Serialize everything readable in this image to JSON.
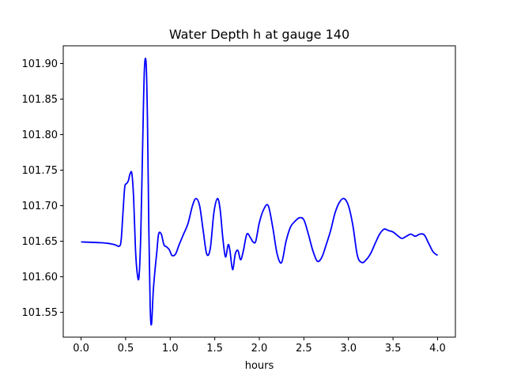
{
  "chart_data": {
    "type": "line",
    "title": "Water Depth h at gauge 140",
    "xlabel": "hours",
    "ylabel": "",
    "xlim": [
      -0.2,
      4.2
    ],
    "ylim": [
      101.515,
      101.925
    ],
    "xticks": [
      0.0,
      0.5,
      1.0,
      1.5,
      2.0,
      2.5,
      3.0,
      3.5,
      4.0
    ],
    "xtick_labels": [
      "0.0",
      "0.5",
      "1.0",
      "1.5",
      "2.0",
      "2.5",
      "3.0",
      "3.5",
      "4.0"
    ],
    "yticks": [
      101.55,
      101.6,
      101.65,
      101.7,
      101.75,
      101.8,
      101.85,
      101.9
    ],
    "ytick_labels": [
      "101.55",
      "101.60",
      "101.65",
      "101.70",
      "101.75",
      "101.80",
      "101.85",
      "101.90"
    ],
    "grid": false,
    "series": [
      {
        "color": "#0000ff",
        "x": [
          0.0,
          0.2,
          0.3,
          0.38,
          0.43,
          0.45,
          0.47,
          0.49,
          0.51,
          0.53,
          0.55,
          0.57,
          0.59,
          0.61,
          0.63,
          0.65,
          0.67,
          0.69,
          0.71,
          0.73,
          0.745,
          0.76,
          0.775,
          0.79,
          0.81,
          0.83,
          0.85,
          0.87,
          0.9,
          0.93,
          0.96,
          0.99,
          1.02,
          1.06,
          1.1,
          1.15,
          1.2,
          1.25,
          1.29,
          1.33,
          1.37,
          1.41,
          1.45,
          1.49,
          1.53,
          1.56,
          1.59,
          1.62,
          1.65,
          1.67,
          1.7,
          1.73,
          1.76,
          1.79,
          1.82,
          1.86,
          1.9,
          1.93,
          1.96,
          2.0,
          2.05,
          2.1,
          2.15,
          2.2,
          2.25,
          2.3,
          2.35,
          2.4,
          2.45,
          2.5,
          2.55,
          2.6,
          2.65,
          2.7,
          2.75,
          2.8,
          2.85,
          2.9,
          2.95,
          3.0,
          3.05,
          3.1,
          3.15,
          3.2,
          3.25,
          3.3,
          3.35,
          3.4,
          3.45,
          3.5,
          3.55,
          3.6,
          3.65,
          3.7,
          3.75,
          3.8,
          3.85,
          3.9,
          3.95,
          4.0
        ],
        "y": [
          101.649,
          101.648,
          101.647,
          101.645,
          101.643,
          101.652,
          101.69,
          101.726,
          101.731,
          101.735,
          101.745,
          101.745,
          101.71,
          101.64,
          101.605,
          101.6,
          101.66,
          101.78,
          101.89,
          101.9,
          101.82,
          101.67,
          101.56,
          101.533,
          101.58,
          101.61,
          101.635,
          101.66,
          101.66,
          101.645,
          101.642,
          101.638,
          101.63,
          101.632,
          101.645,
          101.66,
          101.675,
          101.7,
          101.71,
          101.7,
          101.665,
          101.632,
          101.64,
          101.69,
          101.71,
          101.695,
          101.655,
          101.628,
          101.645,
          101.637,
          101.61,
          101.632,
          101.637,
          101.624,
          101.636,
          101.66,
          101.655,
          101.649,
          101.65,
          101.676,
          101.695,
          101.7,
          101.67,
          101.632,
          101.62,
          101.65,
          101.67,
          101.678,
          101.683,
          101.68,
          101.66,
          101.637,
          101.622,
          101.627,
          101.645,
          101.665,
          101.69,
          101.705,
          101.71,
          101.7,
          101.672,
          101.63,
          101.62,
          101.624,
          101.633,
          101.647,
          101.66,
          101.667,
          101.665,
          101.663,
          101.658,
          101.654,
          101.657,
          101.66,
          101.657,
          101.66,
          101.659,
          101.647,
          101.635,
          101.63
        ]
      }
    ]
  }
}
